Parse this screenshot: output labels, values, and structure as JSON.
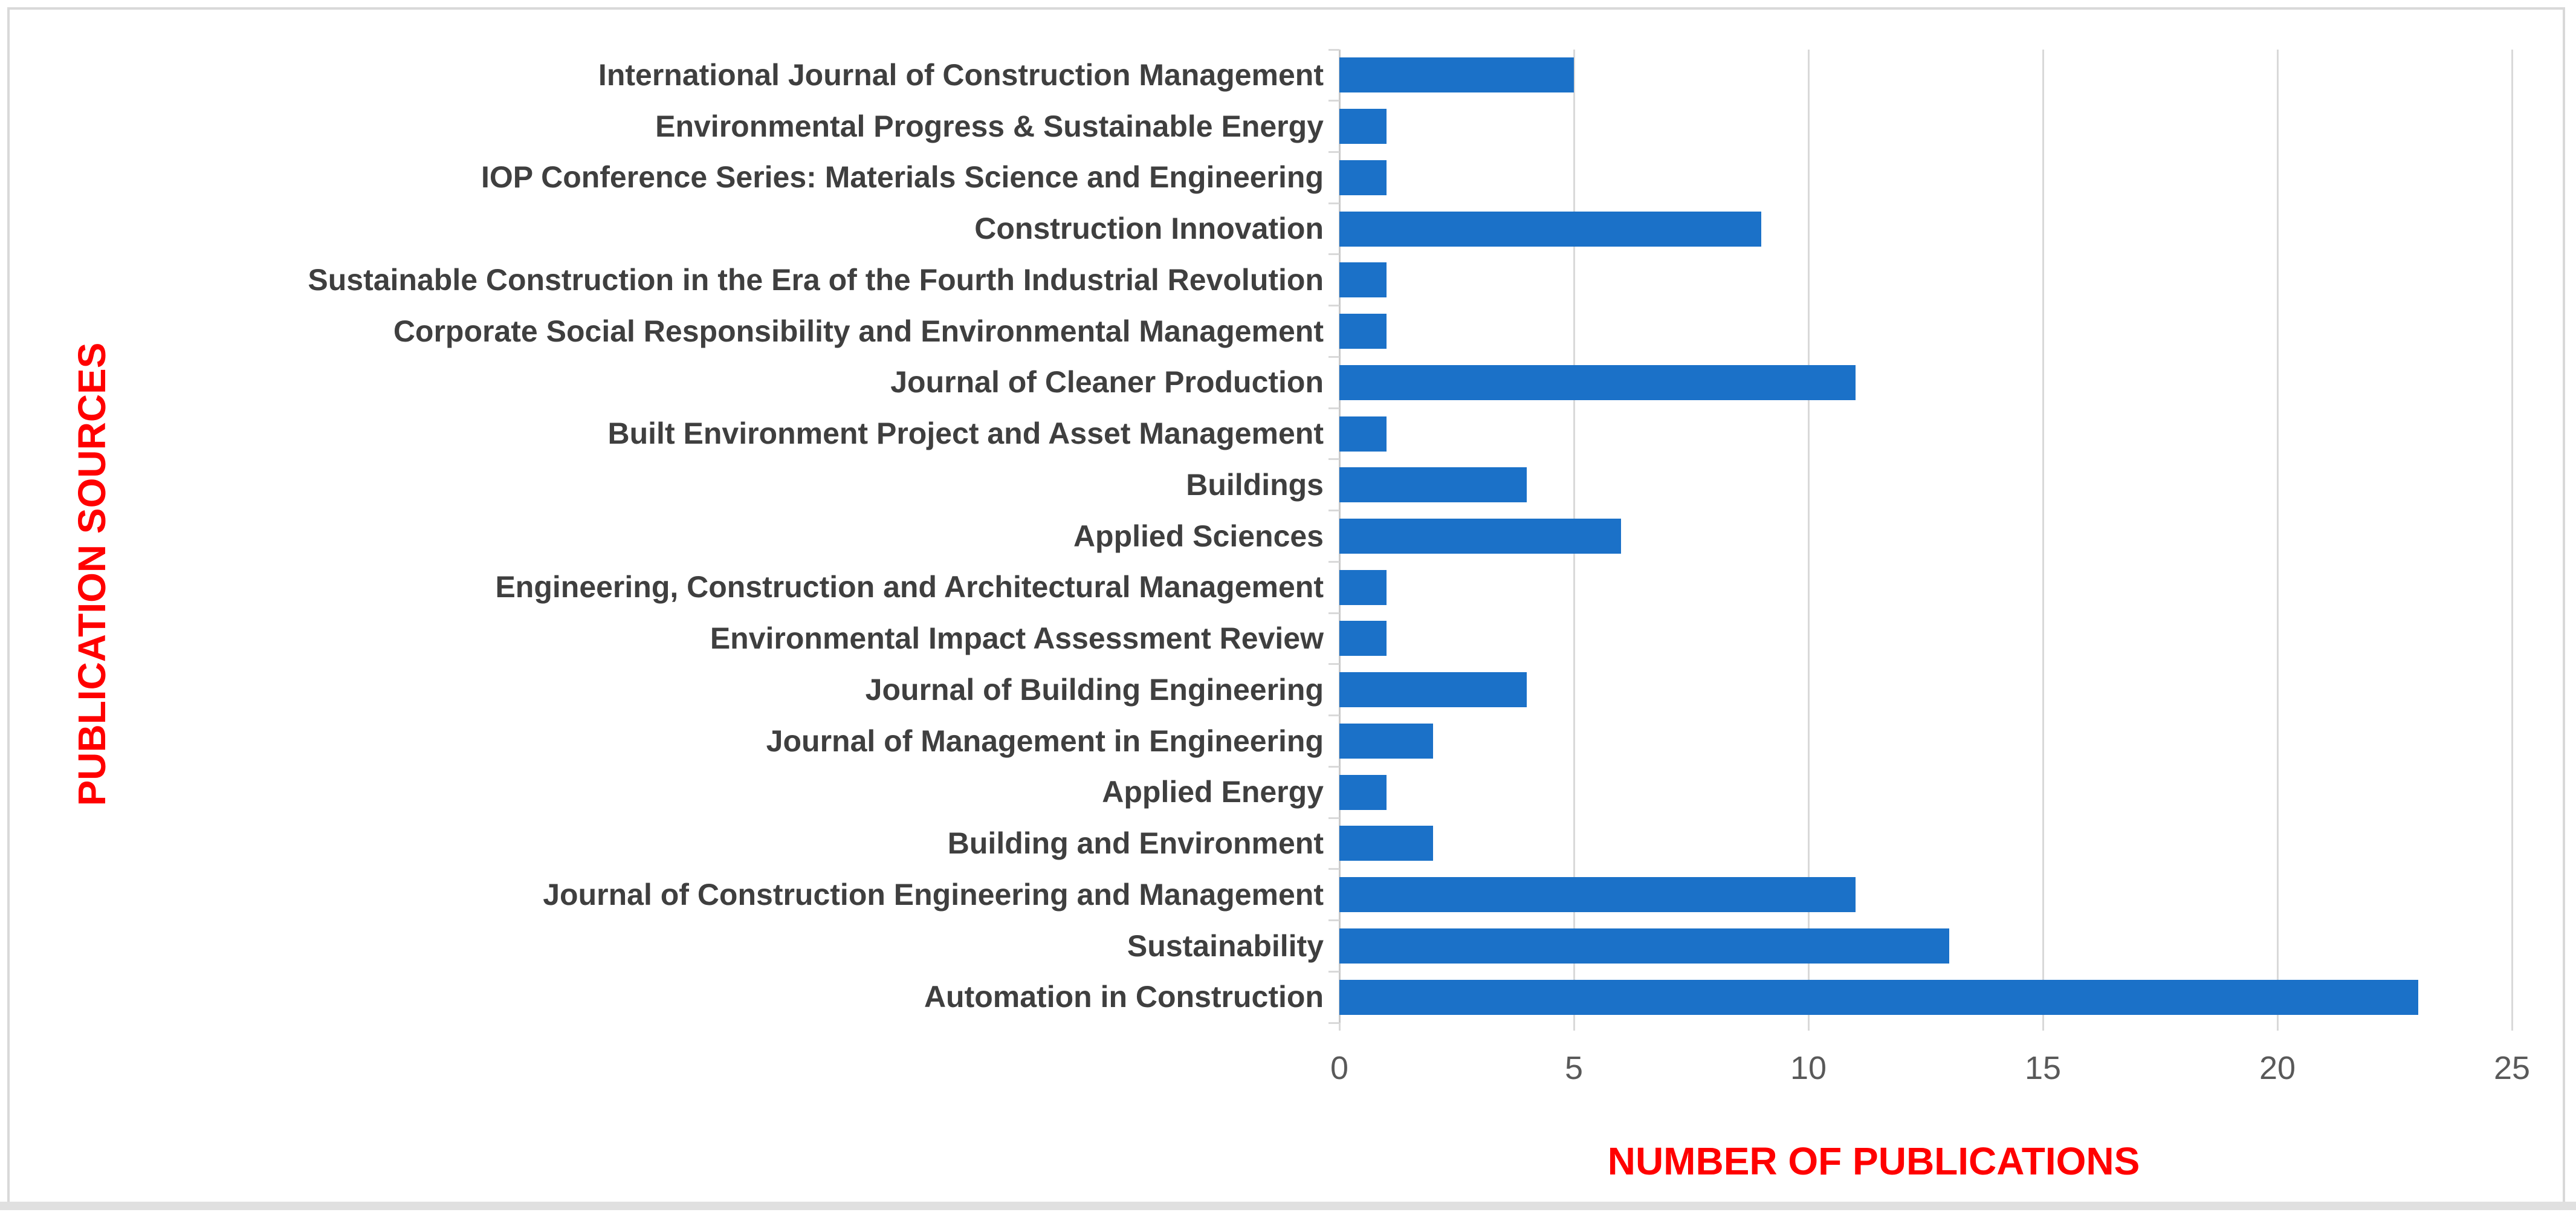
{
  "window": {
    "background": "#FFFFFF",
    "frame_border_color": "#D9D9D9",
    "bottom_strip_color": "#E0E0E0"
  },
  "chart_data": {
    "type": "bar",
    "orientation": "horizontal",
    "title": "",
    "xlabel": "NUMBER OF PUBLICATIONS",
    "ylabel": "PUBLICATION SOURCES",
    "xlim": [
      0,
      25
    ],
    "x_ticks": [
      0,
      5,
      10,
      15,
      20,
      25
    ],
    "grid": "vertical-gridlines-on",
    "legend": "none",
    "bar_color": "#1B71C8",
    "gridline_color": "#D9D9D9",
    "axis_line_color": "#C9C9C9",
    "axis_title_color": "#FF0000",
    "category_label_color": "#3F3F3F",
    "tick_label_color": "#595959",
    "categories": [
      "International Journal of Construction Management",
      "Environmental Progress & Sustainable Energy",
      "IOP Conference Series: Materials Science and Engineering",
      "Construction Innovation",
      "Sustainable Construction in the Era of the Fourth Industrial Revolution",
      "Corporate Social Responsibility and Environmental Management",
      "Journal of Cleaner Production",
      "Built Environment Project and Asset Management",
      "Buildings",
      "Applied Sciences",
      "Engineering, Construction and Architectural Management",
      "Environmental Impact Assessment Review",
      "Journal of Building Engineering",
      "Journal of Management in Engineering",
      "Applied Energy",
      "Building and Environment",
      "Journal of Construction Engineering and Management",
      "Sustainability",
      "Automation in Construction"
    ],
    "values": [
      5,
      1,
      1,
      9,
      1,
      1,
      11,
      1,
      4,
      6,
      1,
      1,
      4,
      2,
      1,
      2,
      11,
      13,
      23
    ]
  }
}
